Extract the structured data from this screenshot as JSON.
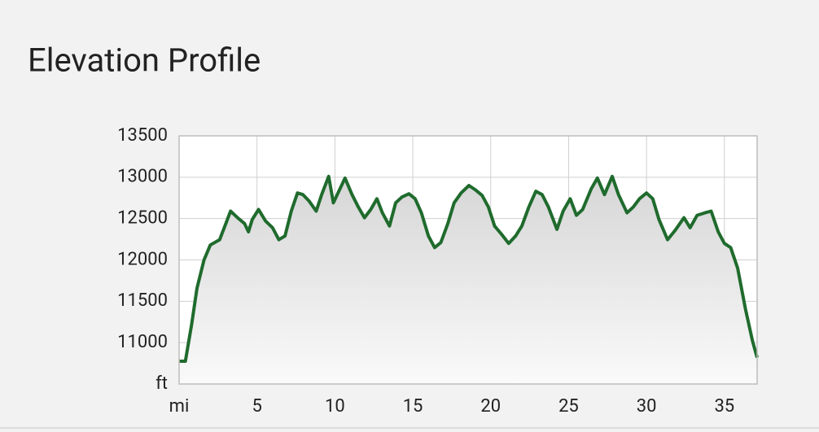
{
  "chart_data": {
    "type": "line",
    "title": "Elevation Profile",
    "xlabel": "mi",
    "ylabel": "ft",
    "xlim": [
      0,
      37.1
    ],
    "ylim": [
      10500,
      13500
    ],
    "xticks": [
      5,
      10,
      15,
      20,
      25,
      30,
      35
    ],
    "yticks": [
      11000,
      11500,
      12000,
      12500,
      13000,
      13500
    ],
    "grid": true,
    "series": [
      {
        "name": "Elevation",
        "color": "#1f6b2d",
        "x": [
          0,
          0.4,
          0.8,
          1.15,
          1.6,
          2.0,
          2.6,
          3.0,
          3.3,
          3.75,
          4.2,
          4.45,
          4.7,
          5.1,
          5.55,
          6.0,
          6.4,
          6.8,
          7.2,
          7.6,
          7.95,
          8.35,
          8.8,
          9.15,
          9.6,
          9.9,
          10.2,
          10.65,
          11.1,
          11.5,
          11.9,
          12.3,
          12.7,
          13.05,
          13.5,
          13.9,
          14.3,
          14.75,
          15.15,
          15.55,
          16.0,
          16.4,
          16.8,
          17.25,
          17.65,
          18.1,
          18.6,
          19.0,
          19.45,
          19.85,
          20.25,
          20.7,
          21.15,
          21.6,
          22.0,
          22.45,
          22.9,
          23.3,
          23.7,
          24.25,
          24.65,
          25.1,
          25.5,
          25.9,
          26.45,
          26.85,
          27.3,
          27.8,
          28.2,
          28.75,
          29.15,
          29.55,
          30.0,
          30.4,
          30.8,
          31.35,
          31.85,
          32.4,
          32.8,
          33.25,
          33.75,
          34.15,
          34.6,
          35.0,
          35.4,
          35.85,
          36.35,
          36.8,
          37.1
        ],
        "values": [
          10775,
          10775,
          11215,
          11660,
          12000,
          12180,
          12245,
          12440,
          12590,
          12510,
          12440,
          12340,
          12490,
          12610,
          12470,
          12390,
          12245,
          12290,
          12590,
          12810,
          12790,
          12710,
          12590,
          12790,
          13010,
          12690,
          12810,
          12990,
          12790,
          12640,
          12510,
          12610,
          12740,
          12570,
          12410,
          12690,
          12760,
          12800,
          12740,
          12570,
          12290,
          12150,
          12210,
          12440,
          12690,
          12810,
          12900,
          12850,
          12780,
          12640,
          12410,
          12310,
          12200,
          12290,
          12410,
          12640,
          12830,
          12790,
          12640,
          12370,
          12590,
          12740,
          12540,
          12610,
          12860,
          12990,
          12790,
          13010,
          12790,
          12570,
          12640,
          12740,
          12810,
          12740,
          12490,
          12245,
          12360,
          12510,
          12390,
          12540,
          12570,
          12590,
          12340,
          12200,
          12150,
          11900,
          11410,
          11020,
          10820
        ]
      }
    ]
  }
}
